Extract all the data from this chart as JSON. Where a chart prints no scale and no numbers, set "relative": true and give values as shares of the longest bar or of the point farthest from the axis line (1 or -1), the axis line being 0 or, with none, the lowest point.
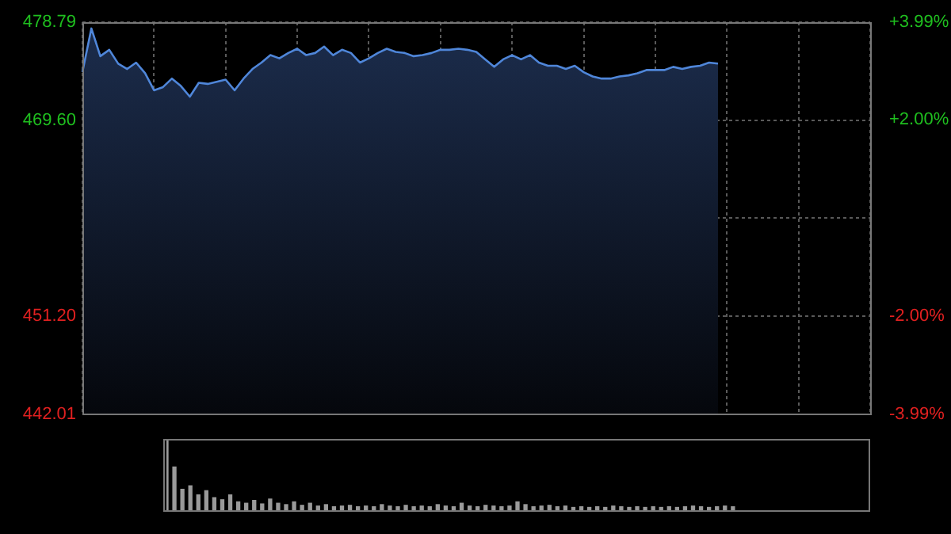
{
  "chart_data": [
    {
      "type": "area",
      "categories": [
        null,
        null,
        null,
        null,
        null,
        null,
        null,
        null,
        null,
        null,
        null,
        null,
        null,
        null,
        null,
        null,
        null,
        null,
        null,
        null,
        null,
        null,
        null,
        null,
        null,
        null,
        null,
        null,
        null,
        null,
        null,
        null,
        null,
        null,
        null,
        null,
        null,
        null,
        null,
        null,
        null,
        null,
        null,
        null,
        null,
        null,
        null,
        null,
        null,
        null,
        null,
        null,
        null,
        null,
        null,
        null,
        null,
        null,
        null,
        null,
        null,
        null,
        null,
        null,
        null,
        null,
        null,
        null,
        null,
        null,
        null,
        null,
        null,
        null,
        null,
        null,
        null,
        null,
        null,
        null,
        null,
        null,
        null,
        null,
        null,
        null,
        null,
        null,
        null
      ],
      "series": [
        {
          "color": "#4f86d9",
          "values": [
            474.1,
            478.2,
            475.6,
            476.2,
            474.9,
            474.4,
            475.0,
            474.0,
            472.4,
            472.7,
            473.5,
            472.8,
            471.8,
            473.1,
            473.0,
            473.2,
            473.4,
            472.4,
            473.5,
            474.4,
            475.0,
            475.7,
            475.4,
            475.9,
            476.3,
            475.7,
            475.9,
            476.5,
            475.7,
            476.2,
            475.9,
            475.0,
            475.4,
            475.9,
            476.3,
            476.0,
            475.9,
            475.6,
            475.7,
            475.9,
            476.2,
            476.2,
            476.3,
            476.2,
            476.0,
            475.3,
            474.6,
            475.3,
            475.7,
            475.3,
            475.7,
            475.0,
            474.7,
            474.7,
            474.4,
            474.7,
            474.1,
            473.7,
            473.5,
            473.5,
            473.7,
            473.8,
            474.0,
            474.3,
            474.3,
            474.3,
            474.6,
            474.4,
            474.6,
            474.7,
            475.0,
            474.9,
            null,
            null,
            null,
            null,
            null,
            null,
            null,
            null,
            null,
            null,
            null,
            null,
            null,
            null,
            null,
            null,
            null
          ]
        }
      ],
      "ylim": [
        442.01,
        478.79
      ],
      "yticks": [
        {
          "value": 478.79,
          "label": "478.79"
        },
        {
          "value": 469.6,
          "label": "469.60"
        },
        {
          "value": 460.4,
          "label": null
        },
        {
          "value": 451.2,
          "label": "451.20"
        },
        {
          "value": 442.01,
          "label": "442.01"
        }
      ],
      "y2lim": [
        -3.99,
        3.99
      ],
      "y2ticks": [
        {
          "value": 3.99,
          "label": "+3.99%"
        },
        {
          "value": 2.0,
          "label": "+2.00%"
        },
        {
          "value": 0,
          "label": null
        },
        {
          "value": -2.0,
          "label": "-2.00%"
        },
        {
          "value": -3.99,
          "label": "-3.99%"
        }
      ],
      "grid": true
    },
    {
      "type": "bar",
      "relative": true,
      "categories": [
        null,
        null,
        null,
        null,
        null,
        null,
        null,
        null,
        null,
        null,
        null,
        null,
        null,
        null,
        null,
        null,
        null,
        null,
        null,
        null,
        null,
        null,
        null,
        null,
        null,
        null,
        null,
        null,
        null,
        null,
        null,
        null,
        null,
        null,
        null,
        null,
        null,
        null,
        null,
        null,
        null,
        null,
        null,
        null,
        null,
        null,
        null,
        null,
        null,
        null,
        null,
        null,
        null,
        null,
        null,
        null,
        null,
        null,
        null,
        null,
        null,
        null,
        null,
        null,
        null,
        null,
        null,
        null,
        null,
        null,
        null,
        null
      ],
      "color": "#9a9a9a",
      "values": [
        1,
        0.62,
        0.3,
        0.35,
        0.22,
        0.28,
        0.18,
        0.15,
        0.22,
        0.12,
        0.1,
        0.14,
        0.09,
        0.16,
        0.1,
        0.08,
        0.12,
        0.07,
        0.1,
        0.06,
        0.08,
        0.05,
        0.06,
        0.07,
        0.05,
        0.06,
        0.05,
        0.08,
        0.06,
        0.05,
        0.07,
        0.05,
        0.06,
        0.05,
        0.08,
        0.06,
        0.05,
        0.1,
        0.06,
        0.05,
        0.07,
        0.06,
        0.05,
        0.06,
        0.12,
        0.08,
        0.05,
        0.06,
        0.07,
        0.05,
        0.06,
        0.04,
        0.05,
        0.04,
        0.05,
        0.04,
        0.06,
        0.05,
        0.04,
        0.05,
        0.04,
        0.05,
        0.04,
        0.05,
        0.04,
        0.05,
        0.06,
        0.05,
        0.04,
        0.05,
        0.06,
        0.05
      ]
    }
  ]
}
